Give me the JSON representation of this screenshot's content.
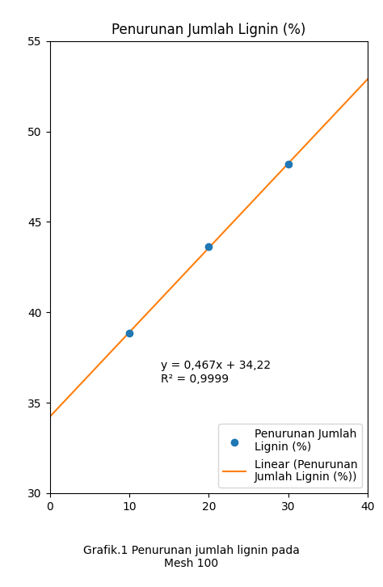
{
  "chart_data": {
    "type": "scatter",
    "title": "Penurunan Jumlah Lignin (%)",
    "series": [
      {
        "name": "Penurunan Jumlah\nLignin (%)",
        "type": "scatter",
        "marker": "o",
        "x": [
          10,
          20,
          30
        ],
        "values": [
          38.86,
          43.62,
          48.2
        ]
      },
      {
        "name": "Linear (Penurunan\nJumlah Lignin (%))",
        "type": "line",
        "line_style": "solid",
        "x": [
          0,
          40
        ],
        "values": [
          34.22,
          52.9
        ]
      }
    ],
    "annotations": [
      "y = 0,467x + 34,22\nR² = 0,9999",
      "Grafik.1 Penurunan jumlah lignin pada\nMesh 100"
    ],
    "xlim": [
      0,
      40
    ],
    "xticks": [
      0,
      10,
      20,
      30,
      40
    ],
    "ylim": [
      30,
      55
    ],
    "yticks": [
      30,
      35,
      40,
      45,
      50,
      55
    ],
    "legend": "lower right"
  }
}
